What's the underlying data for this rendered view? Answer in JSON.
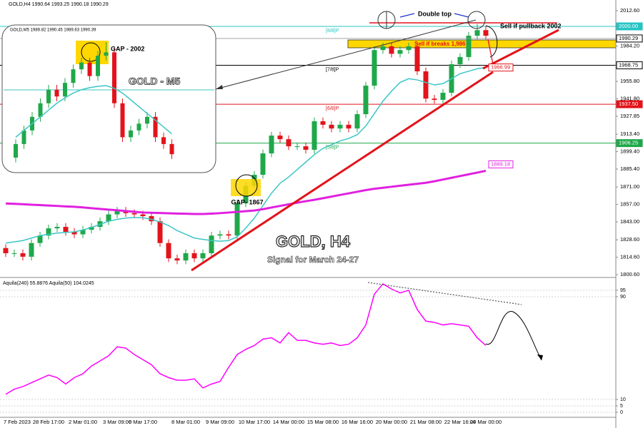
{
  "chart_data": [
    {
      "type": "candlestick",
      "title": "GOLD,H4  1990.64 1993.25 1990.18 1990.29",
      "categories": [
        null,
        "7 Feb 2023",
        null,
        null,
        null,
        "28 Feb 17:00",
        null,
        null,
        null,
        "2 Mar 01:00",
        null,
        null,
        null,
        "3 Mar 09:00",
        null,
        null,
        "6 Mar 17:00",
        null,
        null,
        null,
        null,
        "8 Mar 01:00",
        null,
        null,
        null,
        "9 Mar 09:00",
        null,
        null,
        null,
        "10 Mar 17:00",
        null,
        null,
        null,
        "14 Mar 00:00",
        null,
        null,
        null,
        "15 Mar 08:00",
        null,
        null,
        null,
        "16 Mar 16:00",
        null,
        null,
        null,
        "20 Mar 00:00",
        null,
        null,
        null,
        "21 Mar 08:00",
        null,
        null,
        null,
        "22 Mar 16:00",
        null,
        null,
        "24 Mar 00:00"
      ],
      "open": [
        1822,
        1817.8,
        1817.8,
        1815,
        1826,
        1832,
        1837.8,
        1839,
        1835,
        1833,
        1836.7,
        1839,
        1843.5,
        1849,
        1852,
        1850,
        1849,
        1847.6,
        1843.5,
        1826,
        1813.7,
        1812,
        1817.8,
        1813.7,
        1817.8,
        1832,
        1833,
        1832,
        1857.9,
        1872,
        1880.8,
        1898,
        1912.3,
        1909.4,
        1903.7,
        1903.7,
        1900.9,
        1923.8,
        1921,
        1918,
        1921,
        1918,
        1929.5,
        1952.4,
        1981,
        1984,
        1978,
        1981,
        1984,
        1963.9,
        1942,
        1941,
        1946.7,
        1969.6,
        1975.4,
        1992.5,
        1997
      ],
      "high": [
        1825,
        1820.8,
        1820.8,
        1829,
        1835,
        1840.8,
        1842,
        1842,
        1838,
        1839.7,
        1842,
        1846.5,
        1852,
        1855,
        1855,
        1853,
        1852,
        1850.6,
        1846.5,
        1829,
        1816.7,
        1820.8,
        1820.8,
        1820.8,
        1835,
        1836,
        1836,
        1860.9,
        1875,
        1883.8,
        1901,
        1915.3,
        1915.3,
        1912.4,
        1906.7,
        1906.7,
        1926.8,
        1926.8,
        1924,
        1924,
        1924,
        1932.5,
        1955.4,
        1984,
        1987,
        1987,
        1984,
        1987,
        1987,
        1966.9,
        1945,
        1949.7,
        1972.6,
        1978.4,
        1995.5,
        2002,
        2000
      ],
      "low": [
        1814.8,
        1814.8,
        1812,
        1812,
        1823,
        1829,
        1834.8,
        1832,
        1830,
        1830,
        1833.7,
        1836,
        1840.5,
        1846,
        1847,
        1846,
        1844.6,
        1840.5,
        1823,
        1810.7,
        1809,
        1809,
        1810.7,
        1810.7,
        1814.8,
        1829,
        1829,
        1829,
        1854.9,
        1869,
        1877.8,
        1895,
        1906.4,
        1900.7,
        1900.7,
        1897.9,
        1897.9,
        1918,
        1915,
        1915,
        1915,
        1915,
        1926.5,
        1949.4,
        1978,
        1975,
        1975,
        1978,
        1960.9,
        1939,
        1938,
        1938,
        1943.7,
        1966.6,
        1972.4,
        1989.5,
        1989.5
      ],
      "close": [
        1817.8,
        1817.8,
        1815,
        1826,
        1832,
        1837.8,
        1839,
        1835,
        1833,
        1836.7,
        1839,
        1843.5,
        1849,
        1852,
        1850,
        1849,
        1847.6,
        1843.5,
        1826,
        1813.7,
        1812,
        1817.8,
        1813.7,
        1817.8,
        1832,
        1833,
        1832,
        1857.9,
        1872,
        1880.8,
        1898,
        1912.3,
        1909.4,
        1903.7,
        1903.7,
        1900.9,
        1923.8,
        1921,
        1918,
        1921,
        1918,
        1929.5,
        1952.4,
        1981,
        1984,
        1978,
        1981,
        1984,
        1963.9,
        1942,
        1941,
        1946.7,
        1969.6,
        1975.4,
        1992.5,
        1997,
        1992.5
      ],
      "up_color": "#1fa84a",
      "down_color": "#e3131b",
      "overlays": [
        {
          "color": "#3cc6c6",
          "values": [
            1826,
            1827,
            1828,
            1830,
            1832,
            1833,
            1834,
            1834.5,
            1835,
            1836.5,
            1838.5,
            1841,
            1843.5,
            1845,
            1846,
            1846.5,
            1846.4,
            1845,
            1843,
            1840,
            1836,
            1833,
            1830,
            1829,
            1828,
            1827.5,
            1828,
            1831,
            1838,
            1846,
            1856,
            1866,
            1874,
            1879,
            1885,
            1891,
            1897,
            1902,
            1905,
            1908,
            1910,
            1913,
            1920,
            1930,
            1940,
            1948,
            1955,
            1958,
            1957,
            1955,
            1953,
            1954,
            1958,
            1962,
            1964,
            1966,
            1967
          ]
        },
        {
          "color": "#e020e0",
          "values": [
            1857.8,
            1857.5,
            1857.2,
            1856.8,
            1856.5,
            1856.1,
            1855.8,
            1855.4,
            1855.1,
            1854.6,
            1854,
            1853.4,
            1852.8,
            1852.3,
            1851.7,
            1851.1,
            1850.5,
            1850.3,
            1850.1,
            1849.9,
            1849.7,
            1849.5,
            1849.3,
            1849.3,
            1849.6,
            1850,
            1850.5,
            1851,
            1851.6,
            1852.1,
            1853.2,
            1854.5,
            1855.8,
            1857.1,
            1858.4,
            1859.6,
            1860.7,
            1862,
            1863.3,
            1864.6,
            1865.9,
            1867.2,
            1868.5,
            1869.6,
            1870.4,
            1871.2,
            1872,
            1872.8,
            1873.6,
            1874.4,
            1875.6,
            1877,
            1878.4,
            1879.8,
            1881.2,
            1882.6,
            1884
          ]
        }
      ],
      "levels": [
        {
          "value": 2000,
          "label": "2000.00",
          "tag": "[8/8]P",
          "color": "#27c4c4"
        },
        {
          "value": 1968.75,
          "tag": "[7/8]P",
          "color": "#000000"
        },
        {
          "value": 1937.5,
          "label": "1937.50",
          "tag": "[6/8]P",
          "color": "#e3131b"
        },
        {
          "value": 1906.25,
          "tag": "[5/8]P",
          "color": "#1fa84a"
        }
      ],
      "price_labels": [
        {
          "value": 1990.29,
          "color": "#000000"
        },
        {
          "value": 1966.99,
          "color": "#e3131b"
        },
        {
          "value": 1889.18,
          "color": "#e020e0"
        }
      ],
      "annotations": [
        "Double top",
        "Sell if pullback 2002",
        "Sell if breaks 1,986",
        "GAP- 1867",
        "GOLD, H4",
        "Signal for March 24-27"
      ],
      "ylim": [
        1798.9,
        2021.2
      ],
      "yticks": [
        {
          "value": 2012.6,
          "label": "2012.60"
        },
        {
          "value": 1984.2,
          "label": "1984.20"
        },
        {
          "value": 1955.8,
          "label": "1955.80"
        },
        {
          "value": 1941.8,
          "label": "1941.80"
        },
        1927.85,
        {
          "value": 1913.4,
          "label": "1913.40"
        },
        {
          "value": 1899.4,
          "label": "1899.40"
        },
        {
          "value": 1885.4,
          "label": "1885.40"
        },
        {
          "value": 1871,
          "label": "1871.00"
        },
        {
          "value": 1857,
          "label": "1857.00"
        },
        {
          "value": 1843,
          "label": "1843.00"
        },
        {
          "value": 1828.6,
          "label": "1828.60"
        },
        {
          "value": 1814.6,
          "label": "1814.60"
        },
        {
          "value": 1800.6,
          "label": "1800.60"
        }
      ]
    },
    {
      "type": "line",
      "title": "Aquila(240) 55.8876  Aquila(50) 104.0245",
      "series": [
        {
          "color": "#ff00ff",
          "values": [
            14,
            18,
            20,
            23,
            26,
            29,
            27,
            22,
            27,
            30,
            36,
            40,
            44,
            51,
            50,
            45,
            41,
            37,
            30,
            27,
            25,
            25,
            26,
            19,
            22,
            24,
            35,
            45,
            49,
            52,
            57,
            58,
            54,
            62,
            56,
            56,
            54,
            53,
            54,
            52,
            53,
            58,
            68,
            92,
            100,
            96,
            93,
            95,
            80,
            71,
            70,
            68,
            69,
            68,
            67,
            58,
            52
          ]
        }
      ],
      "ylim": [
        -3.9,
        103.3
      ],
      "yticks": [
        95,
        90,
        10,
        5,
        0
      ]
    },
    {
      "type": "candlestick",
      "title": "GOLD,M5  1989.82 1990.45 1989.63 1990.39",
      "subtitle": "GOLD - M5",
      "open": [
        1985,
        1987,
        1989,
        1991,
        1993,
        1995,
        1994,
        1996,
        1998,
        1999,
        1997,
        2000,
        2000.5,
        1993,
        1988,
        1989,
        1990,
        1991,
        1988,
        1987
      ],
      "high": [
        1987.7,
        1989.7,
        1991.7,
        1993.7,
        1995.7,
        1995.7,
        1996.7,
        1998.7,
        1999.7,
        1999.7,
        2000.7,
        2002,
        2001.2,
        1993.7,
        1989.7,
        1990.7,
        1991.7,
        1991.7,
        1988.7,
        1987.7
      ],
      "low": [
        1984.3,
        1986.3,
        1988.3,
        1990.3,
        1992.3,
        1993.3,
        1993.3,
        1995.3,
        1997.3,
        1996.3,
        1996.3,
        1999.3,
        1992.3,
        1987.3,
        1987.3,
        1988.3,
        1989.3,
        1987.3,
        1986.3,
        1984.8
      ],
      "close": [
        1987,
        1989,
        1991,
        1993,
        1995,
        1994,
        1996,
        1998,
        1999,
        1997,
        2000,
        2000.5,
        1993,
        1988,
        1989,
        1990,
        1991,
        1988,
        1987,
        1985.5
      ],
      "up_color": "#1fa84a",
      "down_color": "#e3131b",
      "overlays": [
        {
          "color": "#3cc6c6",
          "values": [
            1988,
            1989,
            1990,
            1991,
            1992,
            1993,
            1993.8,
            1994.5,
            1995,
            1995.3,
            1995.5,
            1995.6,
            1995.2,
            1994.5,
            1993.5,
            1992.5,
            1991.5,
            1990.5,
            1989.5,
            1988.5
          ]
        }
      ],
      "annotations": [
        "GAP - 2002"
      ],
      "ylim": [
        1983,
        2004
      ]
    }
  ]
}
